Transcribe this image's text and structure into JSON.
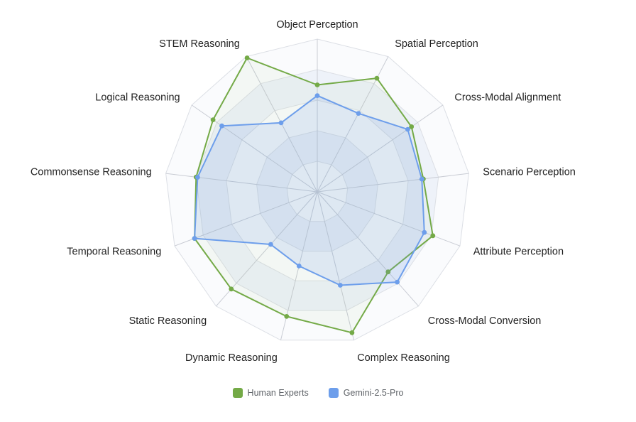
{
  "chart_data": {
    "type": "radar",
    "title": "",
    "categories": [
      "Object Perception",
      "Spatial Perception",
      "Cross-Modal Alignment",
      "Scenario Perception",
      "Attribute Perception",
      "Cross-Modal Conversion",
      "Complex Reasoning",
      "Dynamic Reasoning",
      "Static Reasoning",
      "Temporal Reasoning",
      "Commonsense Reasoning",
      "Logical Reasoning",
      "STEM Reasoning"
    ],
    "max": 100,
    "rings": 5,
    "grid_shape": "polygon",
    "legend_position": "bottom",
    "background_color": "#ffffff",
    "grid_line_color": "#dcdfe5",
    "axis_line_color": "#c9ccd4",
    "split_area_colors": [
      "#fafbfd",
      "#eef2f9"
    ],
    "series": [
      {
        "name": "Human Experts",
        "color": "#74aa47",
        "fill_opacity": 0.05,
        "values": [
          70,
          84,
          75,
          70,
          81,
          70,
          95,
          84,
          85,
          86,
          80,
          83,
          99
        ]
      },
      {
        "name": "Gemini-2.5-Pro",
        "color": "#6d9eeb",
        "fill_opacity": 0.16,
        "values": [
          63,
          58,
          72,
          69,
          75,
          79,
          63,
          50,
          46,
          86,
          79,
          76,
          51
        ]
      }
    ]
  }
}
